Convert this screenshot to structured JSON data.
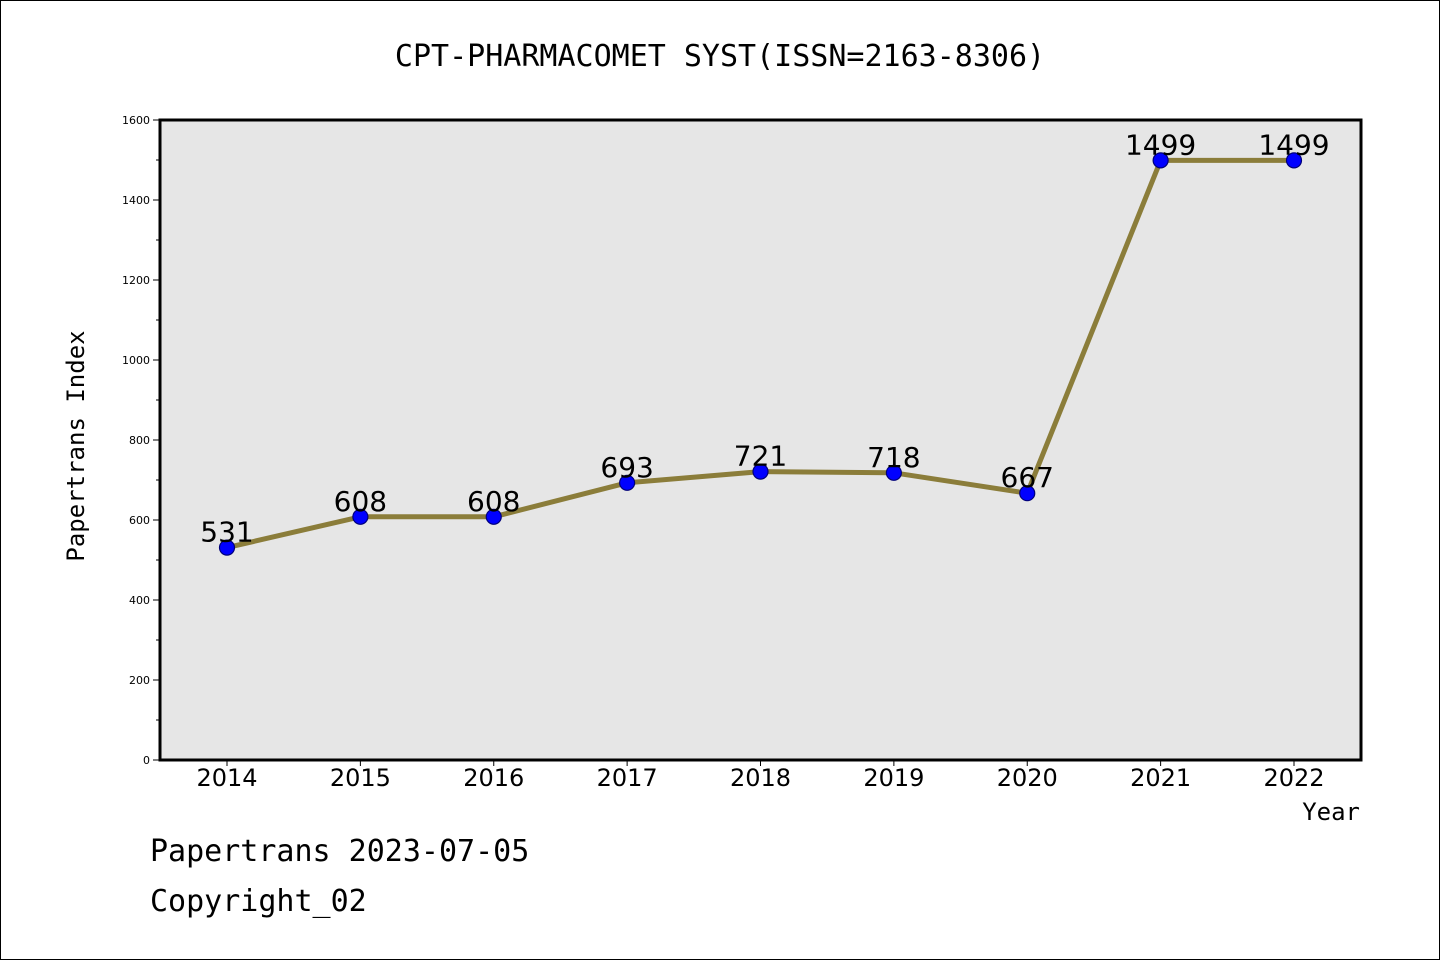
{
  "chart_data": {
    "type": "line",
    "title": "CPT-PHARMACOMET SYST(ISSN=2163-8306)",
    "xlabel": "Year",
    "ylabel": "Papertrans Index",
    "categories": [
      "2014",
      "2015",
      "2016",
      "2017",
      "2018",
      "2019",
      "2020",
      "2021",
      "2022"
    ],
    "values": [
      531,
      608,
      608,
      693,
      721,
      718,
      667,
      1499,
      1499
    ],
    "data_labels": [
      "531",
      "608",
      "608",
      "693",
      "721",
      "718",
      "667",
      "1499",
      "1499"
    ],
    "ylim": [
      0,
      1600
    ],
    "yticks": [
      0,
      200,
      400,
      600,
      800,
      1000,
      1200,
      1400,
      1600
    ],
    "ytick_labels": [
      "0",
      "200",
      "400",
      "600",
      "800",
      "1000",
      "1200",
      "1400",
      "1600"
    ],
    "grid": false,
    "plot_background": "#e6e6e6",
    "line_color": "#8b7d3a",
    "marker_color": "#0000ff"
  },
  "footer": {
    "line1": "Papertrans 2023-07-05",
    "line2": "Copyright_02"
  }
}
